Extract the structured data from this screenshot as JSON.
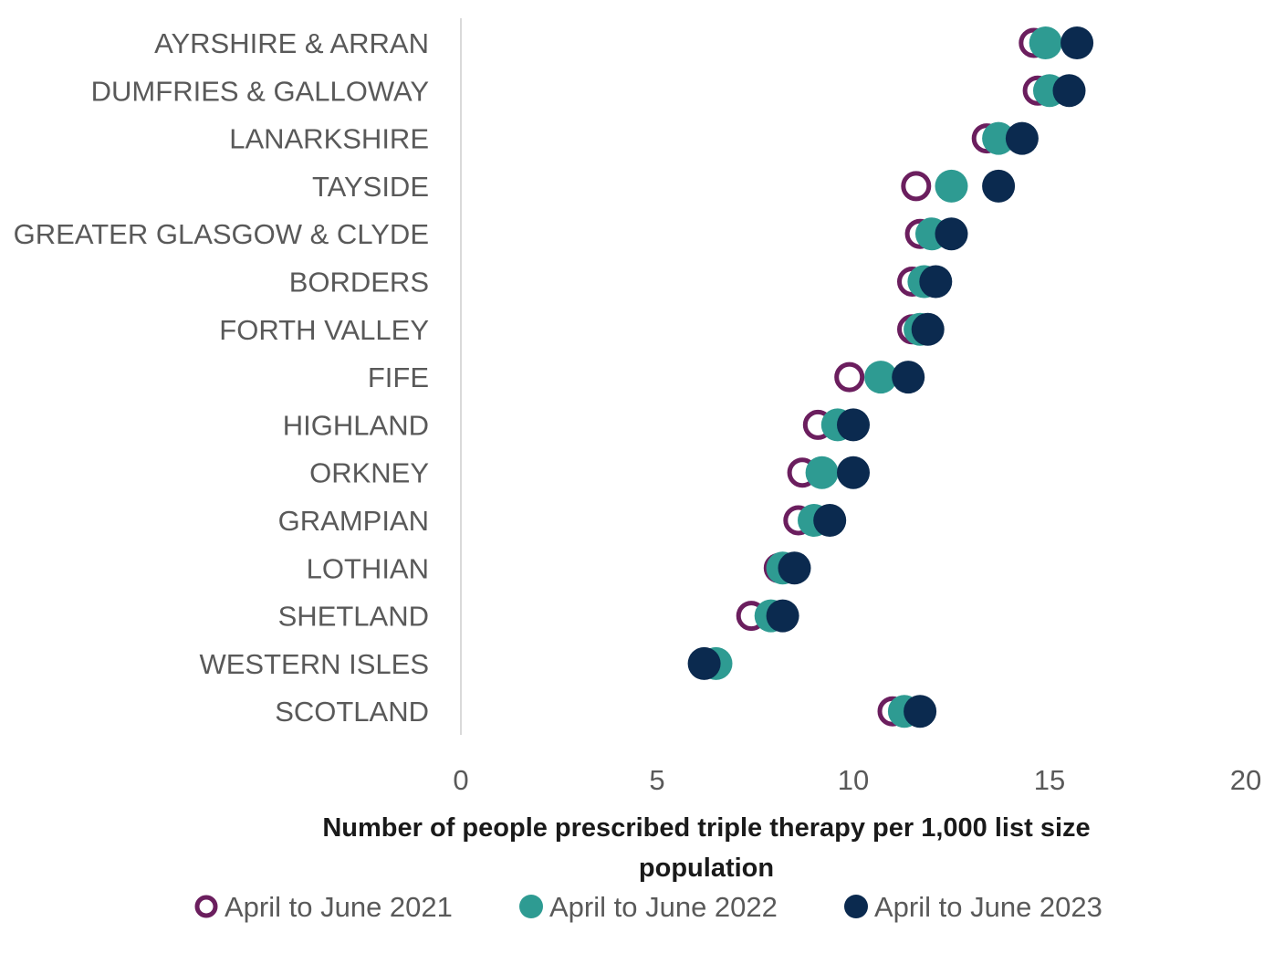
{
  "chart_data": {
    "type": "scatter",
    "title": "",
    "xlabel": "Number of people prescribed triple therapy per 1,000 list size population",
    "xlabel_lines": [
      "Number of people prescribed triple therapy per 1,000 list size",
      "population"
    ],
    "ylabel": "",
    "xlim": [
      0,
      20
    ],
    "xticks": [
      0,
      5,
      10,
      15,
      20
    ],
    "grid": false,
    "legend_position": "bottom",
    "categories": [
      "AYRSHIRE & ARRAN",
      "DUMFRIES & GALLOWAY",
      "LANARKSHIRE",
      "TAYSIDE",
      "GREATER GLASGOW & CLYDE",
      "BORDERS",
      "FORTH VALLEY",
      "FIFE",
      "HIGHLAND",
      "ORKNEY",
      "GRAMPIAN",
      "LOTHIAN",
      "SHETLAND",
      "WESTERN ISLES",
      "SCOTLAND"
    ],
    "series": [
      {
        "name": "April to June 2021",
        "marker": "hollow-circle",
        "color": "#6b1e5e",
        "values": [
          14.6,
          14.7,
          13.4,
          11.6,
          11.7,
          11.5,
          11.5,
          9.9,
          9.1,
          8.7,
          8.6,
          8.1,
          7.4,
          6.2,
          11.0
        ]
      },
      {
        "name": "April to June 2022",
        "marker": "filled-circle",
        "color": "#2e9b92",
        "values": [
          14.9,
          15.0,
          13.7,
          12.5,
          12.0,
          11.8,
          11.7,
          10.7,
          9.6,
          9.2,
          9.0,
          8.2,
          7.9,
          6.5,
          11.3
        ]
      },
      {
        "name": "April to June 2023",
        "marker": "filled-circle",
        "color": "#0b2a4f",
        "values": [
          15.7,
          15.5,
          14.3,
          13.7,
          12.5,
          12.1,
          11.9,
          11.4,
          10.0,
          10.0,
          9.4,
          8.5,
          8.2,
          6.2,
          11.7
        ]
      }
    ]
  },
  "axis": {
    "color": "#d9d9d9"
  }
}
